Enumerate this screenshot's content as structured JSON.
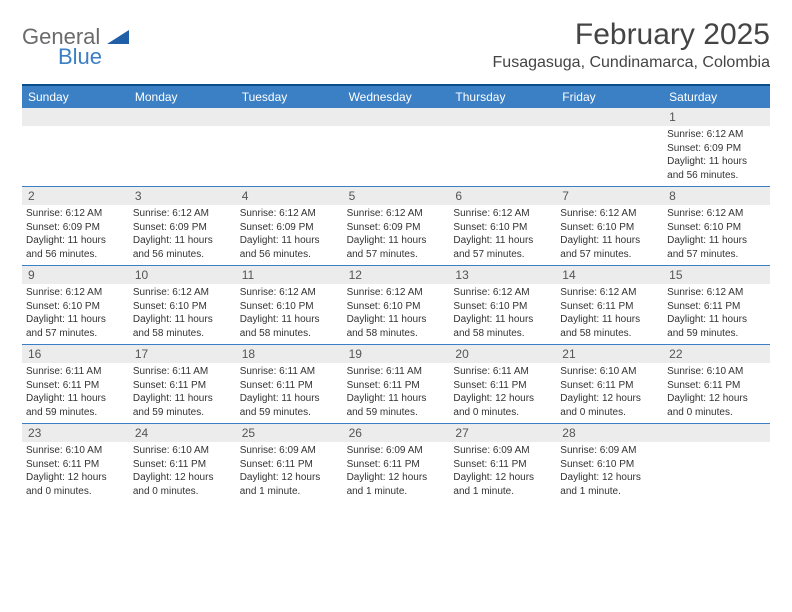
{
  "logo": {
    "general": "General",
    "blue": "Blue"
  },
  "header": {
    "title": "February 2025",
    "location": "Fusagasuga, Cundinamarca, Colombia"
  },
  "weekdays": [
    "Sunday",
    "Monday",
    "Tuesday",
    "Wednesday",
    "Thursday",
    "Friday",
    "Saturday"
  ],
  "colors": {
    "header_bar": "#3b7fc4",
    "top_border": "#0a4d8c",
    "daynum_bg": "#ececec"
  },
  "days": [
    {
      "n": "",
      "empty": true
    },
    {
      "n": "",
      "empty": true
    },
    {
      "n": "",
      "empty": true
    },
    {
      "n": "",
      "empty": true
    },
    {
      "n": "",
      "empty": true
    },
    {
      "n": "",
      "empty": true
    },
    {
      "n": "1",
      "sunrise": "Sunrise: 6:12 AM",
      "sunset": "Sunset: 6:09 PM",
      "daylight1": "Daylight: 11 hours",
      "daylight2": "and 56 minutes."
    },
    {
      "n": "2",
      "sunrise": "Sunrise: 6:12 AM",
      "sunset": "Sunset: 6:09 PM",
      "daylight1": "Daylight: 11 hours",
      "daylight2": "and 56 minutes."
    },
    {
      "n": "3",
      "sunrise": "Sunrise: 6:12 AM",
      "sunset": "Sunset: 6:09 PM",
      "daylight1": "Daylight: 11 hours",
      "daylight2": "and 56 minutes."
    },
    {
      "n": "4",
      "sunrise": "Sunrise: 6:12 AM",
      "sunset": "Sunset: 6:09 PM",
      "daylight1": "Daylight: 11 hours",
      "daylight2": "and 56 minutes."
    },
    {
      "n": "5",
      "sunrise": "Sunrise: 6:12 AM",
      "sunset": "Sunset: 6:09 PM",
      "daylight1": "Daylight: 11 hours",
      "daylight2": "and 57 minutes."
    },
    {
      "n": "6",
      "sunrise": "Sunrise: 6:12 AM",
      "sunset": "Sunset: 6:10 PM",
      "daylight1": "Daylight: 11 hours",
      "daylight2": "and 57 minutes."
    },
    {
      "n": "7",
      "sunrise": "Sunrise: 6:12 AM",
      "sunset": "Sunset: 6:10 PM",
      "daylight1": "Daylight: 11 hours",
      "daylight2": "and 57 minutes."
    },
    {
      "n": "8",
      "sunrise": "Sunrise: 6:12 AM",
      "sunset": "Sunset: 6:10 PM",
      "daylight1": "Daylight: 11 hours",
      "daylight2": "and 57 minutes."
    },
    {
      "n": "9",
      "sunrise": "Sunrise: 6:12 AM",
      "sunset": "Sunset: 6:10 PM",
      "daylight1": "Daylight: 11 hours",
      "daylight2": "and 57 minutes."
    },
    {
      "n": "10",
      "sunrise": "Sunrise: 6:12 AM",
      "sunset": "Sunset: 6:10 PM",
      "daylight1": "Daylight: 11 hours",
      "daylight2": "and 58 minutes."
    },
    {
      "n": "11",
      "sunrise": "Sunrise: 6:12 AM",
      "sunset": "Sunset: 6:10 PM",
      "daylight1": "Daylight: 11 hours",
      "daylight2": "and 58 minutes."
    },
    {
      "n": "12",
      "sunrise": "Sunrise: 6:12 AM",
      "sunset": "Sunset: 6:10 PM",
      "daylight1": "Daylight: 11 hours",
      "daylight2": "and 58 minutes."
    },
    {
      "n": "13",
      "sunrise": "Sunrise: 6:12 AM",
      "sunset": "Sunset: 6:10 PM",
      "daylight1": "Daylight: 11 hours",
      "daylight2": "and 58 minutes."
    },
    {
      "n": "14",
      "sunrise": "Sunrise: 6:12 AM",
      "sunset": "Sunset: 6:11 PM",
      "daylight1": "Daylight: 11 hours",
      "daylight2": "and 58 minutes."
    },
    {
      "n": "15",
      "sunrise": "Sunrise: 6:12 AM",
      "sunset": "Sunset: 6:11 PM",
      "daylight1": "Daylight: 11 hours",
      "daylight2": "and 59 minutes."
    },
    {
      "n": "16",
      "sunrise": "Sunrise: 6:11 AM",
      "sunset": "Sunset: 6:11 PM",
      "daylight1": "Daylight: 11 hours",
      "daylight2": "and 59 minutes."
    },
    {
      "n": "17",
      "sunrise": "Sunrise: 6:11 AM",
      "sunset": "Sunset: 6:11 PM",
      "daylight1": "Daylight: 11 hours",
      "daylight2": "and 59 minutes."
    },
    {
      "n": "18",
      "sunrise": "Sunrise: 6:11 AM",
      "sunset": "Sunset: 6:11 PM",
      "daylight1": "Daylight: 11 hours",
      "daylight2": "and 59 minutes."
    },
    {
      "n": "19",
      "sunrise": "Sunrise: 6:11 AM",
      "sunset": "Sunset: 6:11 PM",
      "daylight1": "Daylight: 11 hours",
      "daylight2": "and 59 minutes."
    },
    {
      "n": "20",
      "sunrise": "Sunrise: 6:11 AM",
      "sunset": "Sunset: 6:11 PM",
      "daylight1": "Daylight: 12 hours",
      "daylight2": "and 0 minutes."
    },
    {
      "n": "21",
      "sunrise": "Sunrise: 6:10 AM",
      "sunset": "Sunset: 6:11 PM",
      "daylight1": "Daylight: 12 hours",
      "daylight2": "and 0 minutes."
    },
    {
      "n": "22",
      "sunrise": "Sunrise: 6:10 AM",
      "sunset": "Sunset: 6:11 PM",
      "daylight1": "Daylight: 12 hours",
      "daylight2": "and 0 minutes."
    },
    {
      "n": "23",
      "sunrise": "Sunrise: 6:10 AM",
      "sunset": "Sunset: 6:11 PM",
      "daylight1": "Daylight: 12 hours",
      "daylight2": "and 0 minutes."
    },
    {
      "n": "24",
      "sunrise": "Sunrise: 6:10 AM",
      "sunset": "Sunset: 6:11 PM",
      "daylight1": "Daylight: 12 hours",
      "daylight2": "and 0 minutes."
    },
    {
      "n": "25",
      "sunrise": "Sunrise: 6:09 AM",
      "sunset": "Sunset: 6:11 PM",
      "daylight1": "Daylight: 12 hours",
      "daylight2": "and 1 minute."
    },
    {
      "n": "26",
      "sunrise": "Sunrise: 6:09 AM",
      "sunset": "Sunset: 6:11 PM",
      "daylight1": "Daylight: 12 hours",
      "daylight2": "and 1 minute."
    },
    {
      "n": "27",
      "sunrise": "Sunrise: 6:09 AM",
      "sunset": "Sunset: 6:11 PM",
      "daylight1": "Daylight: 12 hours",
      "daylight2": "and 1 minute."
    },
    {
      "n": "28",
      "sunrise": "Sunrise: 6:09 AM",
      "sunset": "Sunset: 6:10 PM",
      "daylight1": "Daylight: 12 hours",
      "daylight2": "and 1 minute."
    },
    {
      "n": "",
      "empty": true
    }
  ]
}
